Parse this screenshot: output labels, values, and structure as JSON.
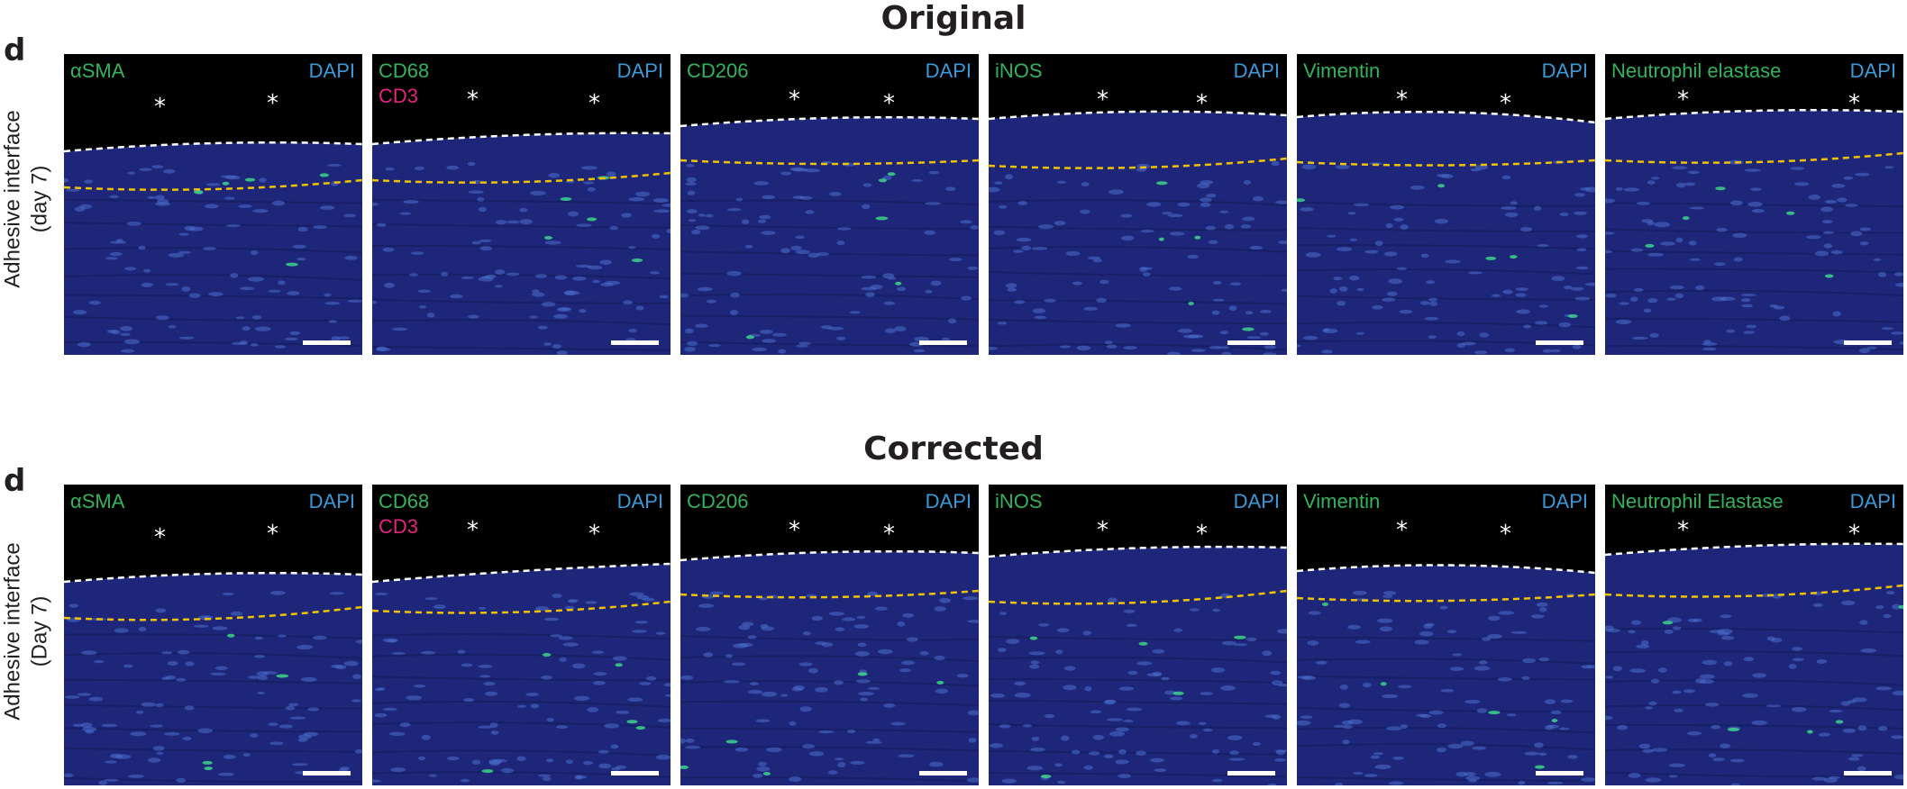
{
  "sections": [
    {
      "title": "Original",
      "panel_letter": "d",
      "ylabel": [
        "Adhesive interface",
        "(day 7)"
      ],
      "tiles": [
        {
          "marker": "αSMA",
          "marker2": "",
          "counterstain": "DAPI"
        },
        {
          "marker": "CD68",
          "marker2": "CD3",
          "counterstain": "DAPI"
        },
        {
          "marker": "CD206",
          "marker2": "",
          "counterstain": "DAPI"
        },
        {
          "marker": "iNOS",
          "marker2": "",
          "counterstain": "DAPI"
        },
        {
          "marker": "Vimentin",
          "marker2": "",
          "counterstain": "DAPI"
        },
        {
          "marker": "Neutrophil elastase",
          "marker2": "",
          "counterstain": "DAPI"
        }
      ]
    },
    {
      "title": "Corrected",
      "panel_letter": "d",
      "ylabel": [
        "Adhesive interface",
        "(Day 7)"
      ],
      "tiles": [
        {
          "marker": "αSMA",
          "marker2": "",
          "counterstain": "DAPI"
        },
        {
          "marker": "CD68",
          "marker2": "CD3",
          "counterstain": "DAPI"
        },
        {
          "marker": "CD206",
          "marker2": "",
          "counterstain": "DAPI"
        },
        {
          "marker": "iNOS",
          "marker2": "",
          "counterstain": "DAPI"
        },
        {
          "marker": "Vimentin",
          "marker2": "",
          "counterstain": "DAPI"
        },
        {
          "marker": "Neutrophil Elastase",
          "marker2": "",
          "counterstain": "DAPI"
        }
      ]
    }
  ],
  "asterisk": "*",
  "colors": {
    "tissue": "#1d2678",
    "background": "#000000",
    "interface_line_outer": "#ffffff",
    "interface_line_inner": "#f2c200",
    "marker_green": "#33b35a",
    "marker_pink": "#e6237e",
    "dapi_blue": "#3a9ad9"
  }
}
